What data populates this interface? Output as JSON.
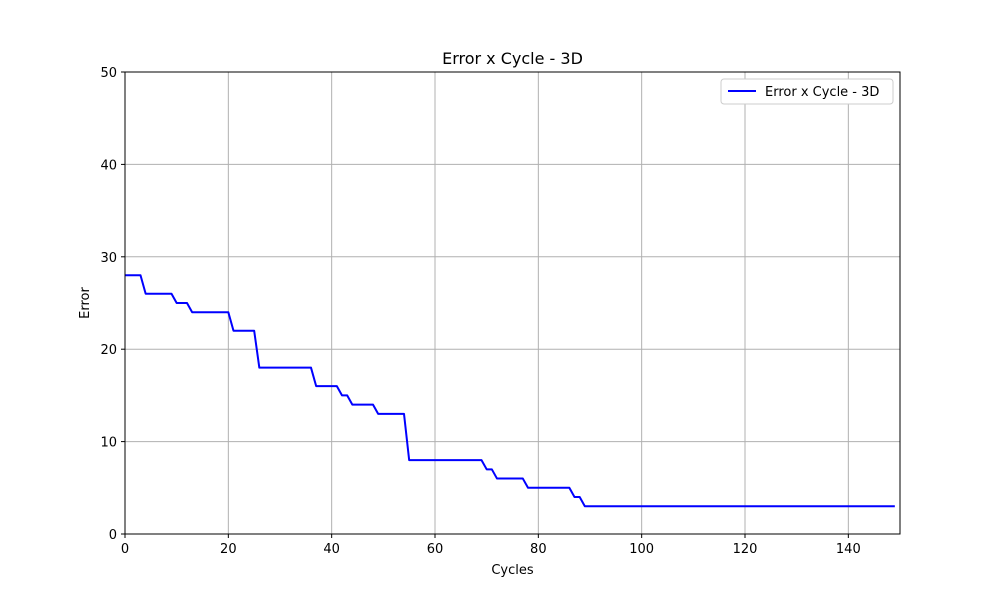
{
  "chart_data": {
    "type": "line",
    "title": "Error x Cycle - 3D",
    "xlabel": "Cycles",
    "ylabel": "Error",
    "xlim": [
      0,
      150
    ],
    "ylim": [
      0,
      50
    ],
    "xticks": [
      0,
      20,
      40,
      60,
      80,
      100,
      120,
      140
    ],
    "yticks": [
      0,
      10,
      20,
      30,
      40,
      50
    ],
    "grid": true,
    "legend_position": "top-right",
    "series": [
      {
        "name": "Error x Cycle - 3D",
        "color": "#0000ff",
        "x": [
          0,
          1,
          2,
          3,
          4,
          5,
          6,
          7,
          8,
          9,
          10,
          11,
          12,
          13,
          14,
          15,
          16,
          17,
          18,
          19,
          20,
          21,
          22,
          23,
          24,
          25,
          26,
          27,
          28,
          29,
          30,
          31,
          32,
          33,
          34,
          35,
          36,
          37,
          38,
          39,
          40,
          41,
          42,
          43,
          44,
          45,
          46,
          47,
          48,
          49,
          50,
          51,
          52,
          53,
          54,
          55,
          56,
          57,
          58,
          59,
          60,
          61,
          62,
          63,
          64,
          65,
          66,
          67,
          68,
          69,
          70,
          71,
          72,
          73,
          74,
          75,
          76,
          77,
          78,
          79,
          80,
          81,
          82,
          83,
          84,
          85,
          86,
          87,
          88,
          89,
          90,
          91,
          92,
          93,
          94,
          95,
          96,
          97,
          98,
          99,
          100,
          101,
          102,
          103,
          104,
          105,
          106,
          107,
          108,
          109,
          110,
          111,
          112,
          113,
          114,
          115,
          116,
          117,
          118,
          119,
          120,
          121,
          122,
          123,
          124,
          125,
          126,
          127,
          128,
          129,
          130,
          131,
          132,
          133,
          134,
          135,
          136,
          137,
          138,
          139,
          140,
          141,
          142,
          143,
          144,
          145,
          146,
          147,
          148,
          149
        ],
        "y": [
          28,
          28,
          28,
          28,
          26,
          26,
          26,
          26,
          26,
          26,
          25,
          25,
          25,
          24,
          24,
          24,
          24,
          24,
          24,
          24,
          24,
          22,
          22,
          22,
          22,
          22,
          18,
          18,
          18,
          18,
          18,
          18,
          18,
          18,
          18,
          18,
          18,
          16,
          16,
          16,
          16,
          16,
          15,
          15,
          14,
          14,
          14,
          14,
          14,
          13,
          13,
          13,
          13,
          13,
          13,
          8,
          8,
          8,
          8,
          8,
          8,
          8,
          8,
          8,
          8,
          8,
          8,
          8,
          8,
          8,
          7,
          7,
          6,
          6,
          6,
          6,
          6,
          6,
          5,
          5,
          5,
          5,
          5,
          5,
          5,
          5,
          5,
          4,
          4,
          3,
          3,
          3,
          3,
          3,
          3,
          3,
          3,
          3,
          3,
          3,
          3,
          3,
          3,
          3,
          3,
          3,
          3,
          3,
          3,
          3,
          3,
          3,
          3,
          3,
          3,
          3,
          3,
          3,
          3,
          3,
          3,
          3,
          3,
          3,
          3,
          3,
          3,
          3,
          3,
          3,
          3,
          3,
          3,
          3,
          3,
          3,
          3,
          3,
          3,
          3,
          3,
          3,
          3,
          3,
          3,
          3,
          3,
          3,
          3,
          3
        ]
      }
    ]
  }
}
